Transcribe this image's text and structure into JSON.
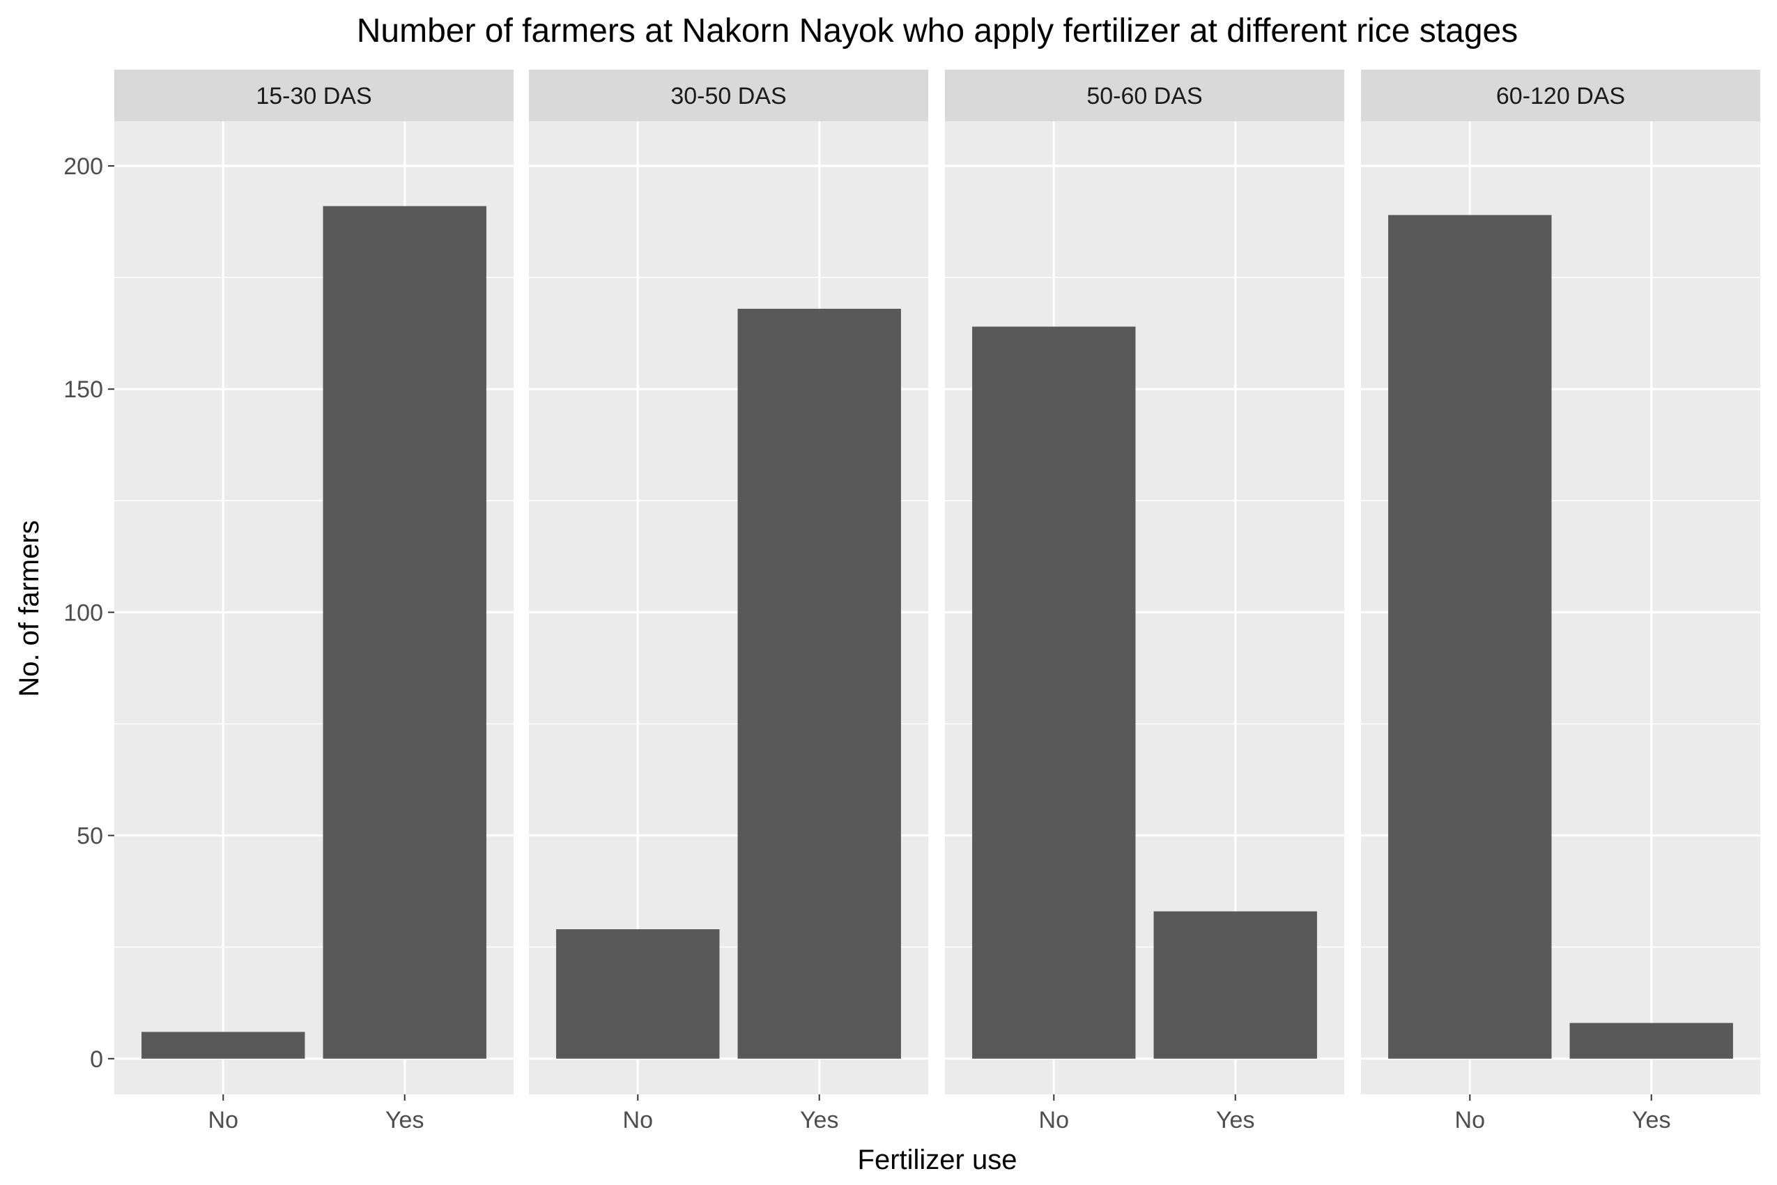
{
  "chart_data": {
    "type": "bar",
    "title": "Number of farmers at Nakorn Nayok who apply fertilizer at different rice stages",
    "xlabel": "Fertilizer use",
    "ylabel": "No. of farmers",
    "ylim": [
      -8,
      210
    ],
    "yticks": [
      0,
      50,
      100,
      150,
      200
    ],
    "categories": [
      "No",
      "Yes"
    ],
    "grid": true,
    "bar_color": "#595959",
    "panel_color": "#EBEBEB",
    "strip_color": "#D9D9D9",
    "facets": [
      {
        "label": "15-30 DAS",
        "values": [
          6,
          191
        ]
      },
      {
        "label": "30-50 DAS",
        "values": [
          29,
          168
        ]
      },
      {
        "label": "50-60 DAS",
        "values": [
          164,
          33
        ]
      },
      {
        "label": "60-120 DAS",
        "values": [
          189,
          8
        ]
      }
    ]
  }
}
